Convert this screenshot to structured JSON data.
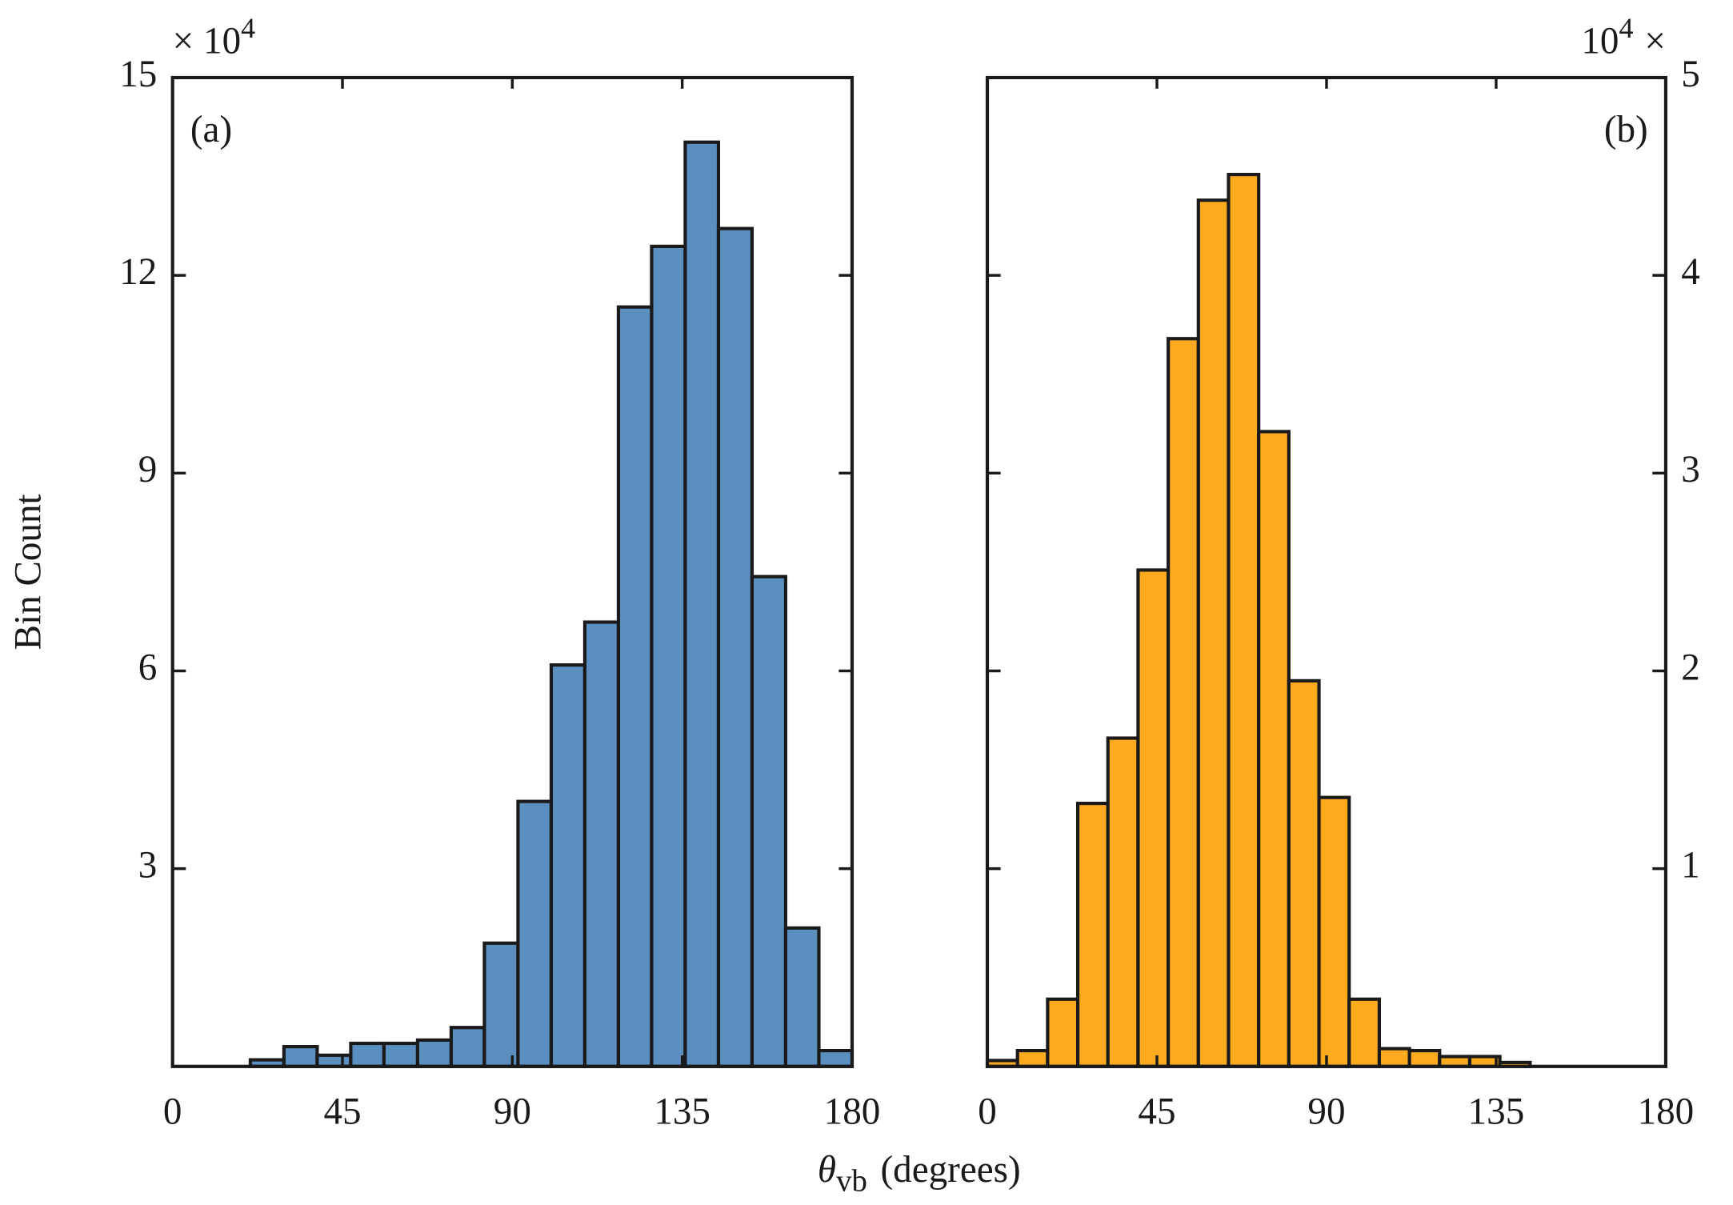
{
  "chart_data": [
    {
      "type": "histogram",
      "panel_label": "(a)",
      "label_corner": "upper left",
      "yaxis_side": "left",
      "ylabel": "Bin Count",
      "xlabel": {
        "symbol": "θ",
        "subscript": "vb",
        "text": "(degrees)"
      },
      "offset_text": {
        "base": "× 10",
        "exponent": "4"
      },
      "color": "#5a8fbf",
      "edgecolor": "#1a1a1a",
      "bins": [
        20.6,
        29.5,
        38.3,
        47.2,
        56.0,
        64.9,
        73.8,
        82.6,
        91.5,
        100.3,
        109.2,
        118.1,
        126.9,
        135.8,
        144.6,
        153.5,
        162.4,
        171.2,
        180
      ],
      "counts": [
        0.1,
        0.3,
        0.17,
        0.35,
        0.35,
        0.4,
        0.59,
        1.87,
        4.02,
        6.09,
        6.74,
        11.52,
        12.44,
        14.02,
        12.71,
        7.43,
        2.1,
        0.24
      ],
      "xlim": [
        0,
        180
      ],
      "xticks": [
        0,
        45,
        90,
        135,
        180
      ],
      "ylim": [
        0,
        15
      ],
      "yticks": [
        3,
        6,
        9,
        12,
        15
      ]
    },
    {
      "type": "histogram",
      "panel_label": "(b)",
      "label_corner": "upper right",
      "yaxis_side": "right",
      "offset_text": {
        "base": "10",
        "exponent": "4",
        "suffix": "×"
      },
      "color": "#fdaa1e",
      "edgecolor": "#1a1a1a",
      "bins": [
        0,
        8,
        16,
        24,
        32,
        40,
        48,
        56,
        64,
        72,
        80,
        88,
        96,
        104,
        112,
        120,
        128,
        136,
        144
      ],
      "counts": [
        0.03,
        0.08,
        0.34,
        1.33,
        1.66,
        2.51,
        3.68,
        4.38,
        4.51,
        3.21,
        1.95,
        1.36,
        0.34,
        0.09,
        0.08,
        0.05,
        0.05,
        0.02
      ],
      "xlim": [
        0,
        180
      ],
      "xticks": [
        0,
        45,
        90,
        135,
        180
      ],
      "ylim": [
        0,
        5
      ],
      "yticks": [
        1,
        2,
        3,
        4,
        5
      ]
    }
  ]
}
